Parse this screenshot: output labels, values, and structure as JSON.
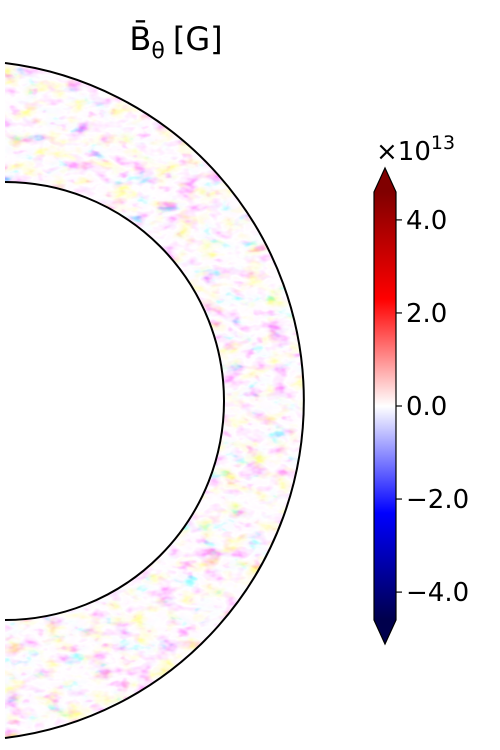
{
  "chart_data": {
    "type": "heatmap",
    "title": "B̄θ [G]",
    "title_parts": {
      "symbol": "B̄",
      "subscript": "θ",
      "unit": "[G]"
    },
    "geometry": "meridional half-annulus (spherical shell)",
    "colormap": "seismic",
    "colorbar": {
      "multiplier_base": "×10",
      "multiplier_exponent": "13",
      "range": [
        -4.6,
        4.6
      ],
      "extend": "both",
      "ticks": [
        4.0,
        2.0,
        0.0,
        -2.0,
        -4.0
      ],
      "tick_labels": [
        "4.0",
        "2.0",
        "0.0",
        "−2.0",
        "−4.0"
      ]
    }
  }
}
